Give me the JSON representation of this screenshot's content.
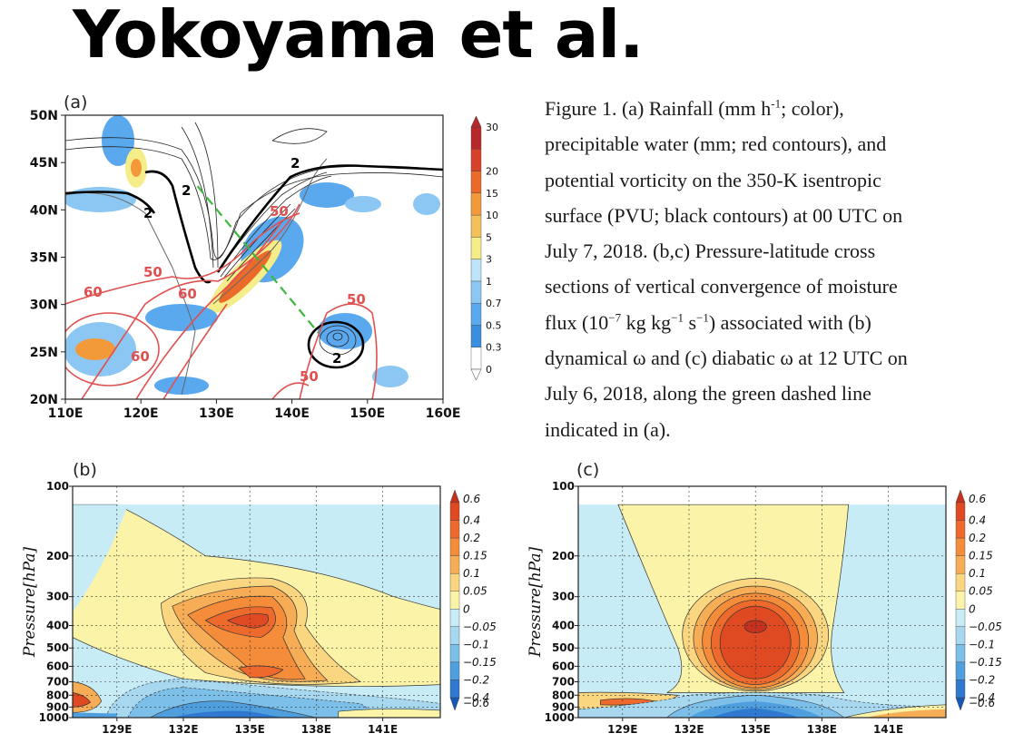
{
  "header": {
    "title": "Yokoyama et al."
  },
  "caption": {
    "lines": [
      "Figure 1. (a) Rainfall (mm h",
      "precipitable water (mm; red contours), and",
      "potential vorticity on the 350-K isentropic",
      "surface (PVU; black contours) at 00 UTC on",
      "July 7, 2018. (b,c) Pressure-latitude cross",
      "sections of vertical convergence of moisture",
      "flux (10",
      "dynamical ω and (c) diabatic ω at 12 UTC on",
      "July 6, 2018, along the green dashed line",
      "indicated in (a)."
    ],
    "line1_sup": "-1",
    "line1_tail": "; color),",
    "line7_sup1": "−7",
    "line7_mid1": " kg kg",
    "line7_sup2": "−1",
    "line7_mid2": " s",
    "line7_sup3": "−1",
    "line7_tail": ") associated with (b)"
  },
  "chart_data": [
    {
      "panel": "(a)",
      "type": "map",
      "xticks": [
        "110E",
        "120E",
        "130E",
        "140E",
        "150E",
        "160E"
      ],
      "yticks": [
        "20N",
        "25N",
        "30N",
        "35N",
        "40N",
        "45N",
        "50N"
      ],
      "xlim": [
        110,
        160
      ],
      "ylim": [
        20,
        50
      ],
      "colorbar": [
        "0",
        "0.3",
        "0.5",
        "0.7",
        "1",
        "3",
        "5",
        "10",
        "15",
        "20",
        "30"
      ],
      "colorbar_colors": [
        "#ffffff",
        "#3a8ee0",
        "#5aa8ee",
        "#8cc6f2",
        "#bfe3f7",
        "#f5ec8a",
        "#f4c05a",
        "#f29a3a",
        "#ea6a2a",
        "#d8402a",
        "#b8282a"
      ],
      "contour_labels": {
        "pv": [
          "2",
          "2",
          "2",
          "2"
        ],
        "pw": [
          "50",
          "50",
          "50",
          "50",
          "60",
          "60",
          "60"
        ]
      },
      "green_line": {
        "start": [
          127.5,
          42.5
        ],
        "end": [
          143.5,
          27
        ]
      }
    },
    {
      "panel": "(b)",
      "type": "heatmap",
      "ylabel": "Pressure[hPa]",
      "xticks": [
        "129E",
        "132E",
        "135E",
        "138E",
        "141E"
      ],
      "yticks": [
        "100",
        "200",
        "300",
        "400",
        "500",
        "600",
        "700",
        "800",
        "900",
        "1000"
      ],
      "colorbar": [
        "0.6",
        "0.4",
        "0.2",
        "0.15",
        "0.1",
        "0.05",
        "0",
        "−0.05",
        "−0.1",
        "−0.15",
        "−0.2",
        "−0.4",
        "−0.6"
      ],
      "colorbar_colors": [
        "#c8301e",
        "#e04a22",
        "#ee6a2c",
        "#f48c3a",
        "#f7ad55",
        "#fbd681",
        "#fbf4a8",
        "#c8ecf6",
        "#a8d8f0",
        "#7cc0ea",
        "#4f9fde",
        "#2f7ad0",
        "#1656b8"
      ],
      "peak_center": {
        "x": "135E",
        "p": 370
      }
    },
    {
      "panel": "(c)",
      "type": "heatmap",
      "ylabel": "Pressure[hPa]",
      "xticks": [
        "129E",
        "132E",
        "135E",
        "138E",
        "141E"
      ],
      "yticks": [
        "100",
        "200",
        "300",
        "400",
        "500",
        "600",
        "700",
        "800",
        "900",
        "1000"
      ],
      "colorbar": [
        "0.6",
        "0.4",
        "0.2",
        "0.15",
        "0.1",
        "0.05",
        "0",
        "−0.05",
        "−0.1",
        "−0.15",
        "−0.2",
        "−0.4",
        "−0.6"
      ],
      "colorbar_colors": [
        "#c8301e",
        "#e04a22",
        "#ee6a2c",
        "#f48c3a",
        "#f7ad55",
        "#fbd681",
        "#fbf4a8",
        "#c8ecf6",
        "#a8d8f0",
        "#7cc0ea",
        "#4f9fde",
        "#2f7ad0",
        "#1656b8"
      ],
      "peak_center": {
        "x": "135E",
        "p": 400
      }
    }
  ],
  "panels": {
    "a": "(a)",
    "b": "(b)",
    "c": "(c)"
  }
}
